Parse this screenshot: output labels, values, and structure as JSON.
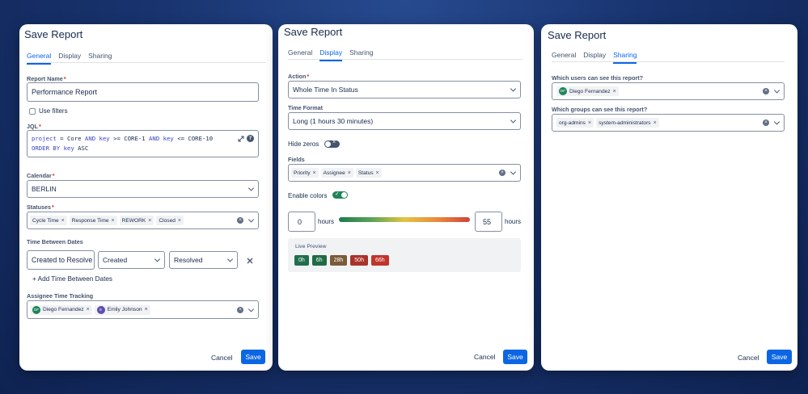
{
  "panels": {
    "general": {
      "title": "Save Report",
      "tabs": [
        "General",
        "Display",
        "Sharing"
      ],
      "report_name_label": "Report Name",
      "report_name_value": "Performance Report",
      "use_filters_label": "Use filters",
      "jql_label": "JQL",
      "jql_line1": [
        "project",
        " = Core ",
        "AND",
        " ",
        "key",
        " >= CORE-1 ",
        "AND",
        " ",
        "key",
        " <= CORE-10"
      ],
      "jql_line2": [
        "ORDER BY",
        " ",
        "key",
        " ASC"
      ],
      "calendar_label": "Calendar",
      "calendar_value": "BERLIN",
      "statuses_label": "Statuses",
      "statuses": [
        "Cycle Time",
        "Response Time",
        "REWORK",
        "Closed"
      ],
      "time_between_label": "Time Between Dates",
      "tbd_name": "Created to Resolve",
      "tbd_from": "Created",
      "tbd_to": "Resolved",
      "add_tbd_label": "+ Add Time Between Dates",
      "assignee_label": "Assignee Time Tracking",
      "assignees": [
        {
          "initials": "DF",
          "name": "Diego Fernandez",
          "color": "#1f845a"
        },
        {
          "initials": "E",
          "name": "Emily Johnson",
          "color": "#5e4db2"
        }
      ],
      "cancel": "Cancel",
      "save": "Save"
    },
    "display": {
      "title": "Save Report",
      "tabs": [
        "General",
        "Display",
        "Sharing"
      ],
      "action_label": "Action",
      "action_value": "Whole Time In Status",
      "time_format_label": "Time Format",
      "time_format_value": "Long (1 hours 30 minutes)",
      "hide_zeros_label": "Hide zeros",
      "hide_zeros_on": false,
      "fields_label": "Fields",
      "fields": [
        "Priority",
        "Assignee",
        "Status"
      ],
      "enable_colors_label": "Enable colors",
      "enable_colors_on": true,
      "range_min": "0",
      "range_max": "55",
      "hours_unit": "hours",
      "live_preview_label": "Live Preview",
      "preview_chips": [
        {
          "label": "0h",
          "color": "#216e4e"
        },
        {
          "label": "6h",
          "color": "#1f6b46"
        },
        {
          "label": "28h",
          "color": "#7a5a3a"
        },
        {
          "label": "50h",
          "color": "#a8332c"
        },
        {
          "label": "66h",
          "color": "#c0352b"
        }
      ],
      "cancel": "Cancel",
      "save": "Save"
    },
    "sharing": {
      "title": "Save Report",
      "tabs": [
        "General",
        "Display",
        "Sharing"
      ],
      "users_label": "Which users can see this report?",
      "users": [
        {
          "initials": "DF",
          "name": "Diego Fernandez",
          "color": "#1f845a"
        }
      ],
      "groups_label": "Which groups can see this report?",
      "groups": [
        "org-admins",
        "system-administrators"
      ],
      "cancel": "Cancel",
      "save": "Save"
    }
  },
  "colors": {
    "accent": "#0c66e4",
    "required": "#c9372c",
    "toggle_on": "#1f845a",
    "toggle_off": "#44546f"
  }
}
